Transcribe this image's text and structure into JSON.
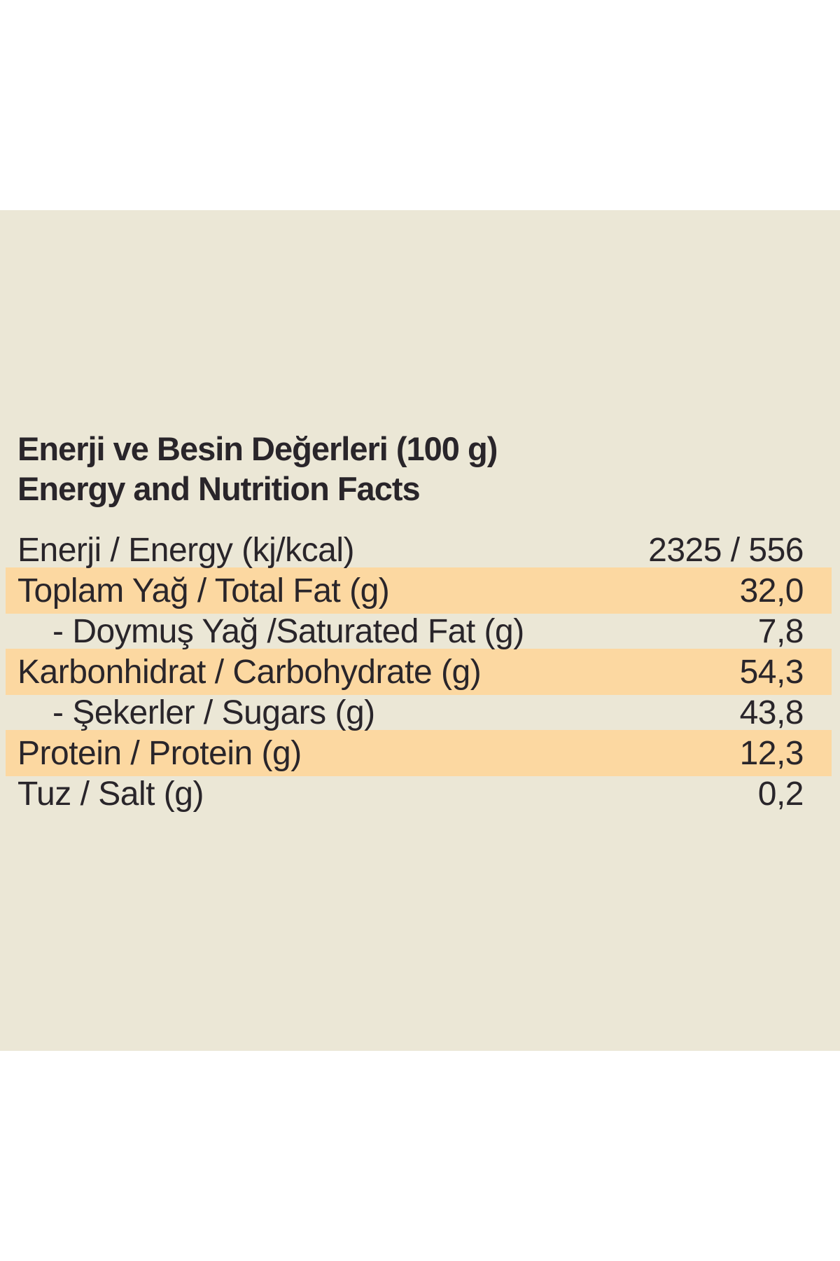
{
  "colors": {
    "panel_bg": "#ebe7d6",
    "highlight": "#fcd8a1",
    "text": "#29252a",
    "page_bg": "#ffffff"
  },
  "title": {
    "line1": "Enerji ve Besin Değerleri (100 g)",
    "line2": "Energy and Nutrition Facts"
  },
  "table": {
    "rows": [
      {
        "label": "Enerji / Energy (kj/kcal)",
        "value": "2325 / 556",
        "highlight": false,
        "indent": false
      },
      {
        "label": "Toplam Yağ / Total Fat (g)",
        "value": "32,0",
        "highlight": true,
        "indent": false
      },
      {
        "label": "- Doymuş Yağ /Saturated Fat (g)",
        "value": "7,8",
        "highlight": false,
        "indent": true
      },
      {
        "label": "Karbonhidrat / Carbohydrate (g)",
        "value": "54,3",
        "highlight": true,
        "indent": false
      },
      {
        "label": "- Şekerler / Sugars (g)",
        "value": "43,8",
        "highlight": false,
        "indent": true
      },
      {
        "label": "Protein / Protein (g)",
        "value": "12,3",
        "highlight": true,
        "indent": false
      },
      {
        "label": "Tuz / Salt (g)",
        "value": "0,2",
        "highlight": false,
        "indent": false
      }
    ]
  }
}
